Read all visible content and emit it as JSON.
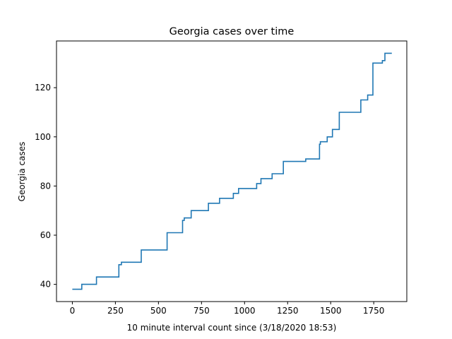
{
  "chart_data": {
    "type": "line",
    "title": "Georgia cases over time",
    "xlabel": "10 minute interval count since (3/18/2020 18:53)",
    "ylabel": "Georgia cases",
    "xlim": [
      -92,
      1942
    ],
    "ylim": [
      33,
      139
    ],
    "x_ticks": [
      0,
      250,
      500,
      750,
      1000,
      1250,
      1500,
      1750
    ],
    "y_ticks": [
      40,
      60,
      80,
      100,
      120
    ],
    "grid": false,
    "line_color": "#1f77b4",
    "series": [
      {
        "step": "post",
        "x": [
          0,
          55,
          140,
          270,
          285,
          400,
          550,
          640,
          650,
          690,
          790,
          855,
          935,
          965,
          1070,
          1095,
          1160,
          1225,
          1355,
          1435,
          1440,
          1480,
          1510,
          1550,
          1675,
          1715,
          1745,
          1800,
          1815,
          1855
        ],
        "y": [
          38,
          40,
          43,
          48,
          49,
          54,
          61,
          66,
          67,
          70,
          73,
          75,
          77,
          79,
          81,
          83,
          85,
          90,
          91,
          97,
          98,
          100,
          103,
          110,
          115,
          117,
          130,
          131,
          134,
          134
        ]
      }
    ]
  }
}
